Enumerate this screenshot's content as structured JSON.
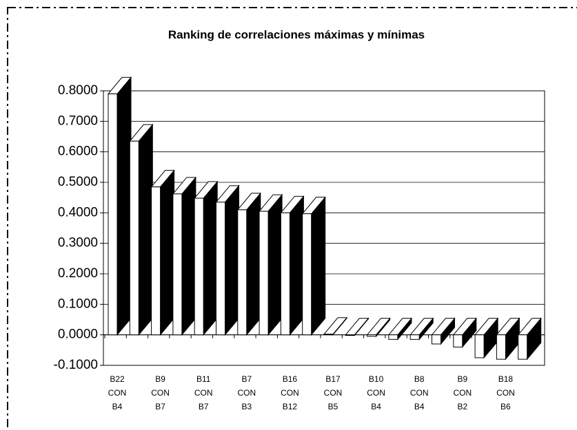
{
  "chart_data": {
    "type": "bar3d",
    "title": "Ranking de correlaciones máximas y mínimas",
    "categories": [
      "B22\nCON\nB4",
      null,
      "B9\nCON\nB7",
      null,
      "B11\nCON\nB7",
      null,
      "B7\nCON\nB3",
      null,
      "B16\nCON\nB12",
      null,
      "B17\nCON\nB5",
      null,
      "B10\nCON\nB4",
      null,
      "B8\nCON\nB4",
      null,
      "B9\nCON\nB2",
      null,
      "B18\nCON\nB6",
      null
    ],
    "values": [
      0.79,
      0.635,
      0.485,
      0.462,
      0.448,
      0.435,
      0.41,
      0.405,
      0.4,
      0.397,
      0.002,
      -0.002,
      -0.005,
      -0.015,
      -0.015,
      -0.03,
      -0.04,
      -0.075,
      -0.08,
      -0.08
    ],
    "front_color": "#ffffff",
    "side_color": "#000000",
    "ylim": [
      -0.1,
      0.8
    ],
    "yticks": [
      {
        "value": -0.1,
        "label": "-0.1000"
      },
      {
        "value": 0,
        "label": "0.0000"
      },
      {
        "value": 0.1,
        "label": "0.1000"
      },
      {
        "value": 0.2,
        "label": "0.2000"
      },
      {
        "value": 0.3,
        "label": "0.3000"
      },
      {
        "value": 0.4,
        "label": "0.4000"
      },
      {
        "value": 0.5,
        "label": "0.5000"
      },
      {
        "value": 0.6,
        "label": "0.6000"
      },
      {
        "value": 0.7,
        "label": "0.7000"
      },
      {
        "value": 0.8,
        "label": "0.8000"
      }
    ],
    "grid": true
  }
}
